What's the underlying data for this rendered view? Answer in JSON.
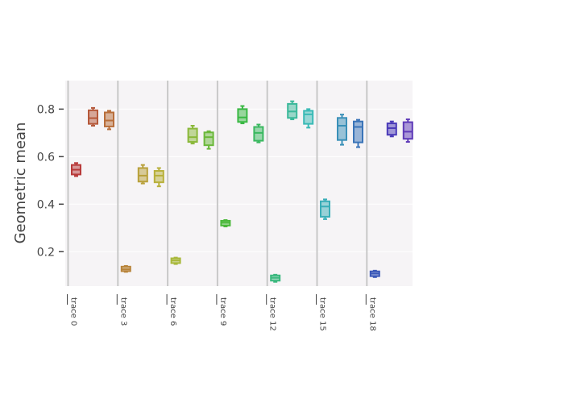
{
  "chart_data": {
    "type": "box",
    "ylabel": "Geometric mean",
    "xlabel": "",
    "ylim": [
      0.055,
      0.92
    ],
    "y_ticks": [
      0.2,
      0.4,
      0.6,
      0.8
    ],
    "y_tick_labels": [
      "0.2",
      "0.4",
      "0.6",
      "0.8"
    ],
    "x_tick_labels": [
      "trace 0",
      "trace 3",
      "trace 6",
      "trace 9",
      "trace 12",
      "trace 15",
      "trace 18"
    ],
    "grid": true,
    "legend": "none",
    "plot_background": "#f6f4f6",
    "series": [
      {
        "color": "#b83a3a",
        "min": 0.518,
        "q1": 0.525,
        "median": 0.545,
        "q3": 0.565,
        "max": 0.573
      },
      {
        "color": "#b5583a",
        "min": 0.73,
        "q1": 0.738,
        "median": 0.762,
        "q3": 0.795,
        "max": 0.805
      },
      {
        "color": "#b86e3a",
        "min": 0.715,
        "q1": 0.727,
        "median": 0.752,
        "q3": 0.786,
        "max": 0.793
      },
      {
        "color": "#b8843a",
        "min": 0.115,
        "q1": 0.118,
        "median": 0.126,
        "q3": 0.137,
        "max": 0.14
      },
      {
        "color": "#b8a03a",
        "min": 0.487,
        "q1": 0.495,
        "median": 0.52,
        "q3": 0.552,
        "max": 0.565
      },
      {
        "color": "#b8b03a",
        "min": 0.475,
        "q1": 0.492,
        "median": 0.52,
        "q3": 0.54,
        "max": 0.552
      },
      {
        "color": "#a8b83a",
        "min": 0.148,
        "q1": 0.152,
        "median": 0.163,
        "q3": 0.172,
        "max": 0.175
      },
      {
        "color": "#8ab83a",
        "min": 0.655,
        "q1": 0.662,
        "median": 0.682,
        "q3": 0.718,
        "max": 0.73
      },
      {
        "color": "#6ab83a",
        "min": 0.633,
        "q1": 0.648,
        "median": 0.682,
        "q3": 0.702,
        "max": 0.707
      },
      {
        "color": "#4ab83a",
        "min": 0.306,
        "q1": 0.31,
        "median": 0.322,
        "q3": 0.33,
        "max": 0.333
      },
      {
        "color": "#3ab844",
        "min": 0.74,
        "q1": 0.746,
        "median": 0.765,
        "q3": 0.8,
        "max": 0.813
      },
      {
        "color": "#3ab860",
        "min": 0.66,
        "q1": 0.667,
        "median": 0.7,
        "q3": 0.725,
        "max": 0.735
      },
      {
        "color": "#3ab87e",
        "min": 0.073,
        "q1": 0.078,
        "median": 0.09,
        "q3": 0.1,
        "max": 0.103
      },
      {
        "color": "#3ab89a",
        "min": 0.757,
        "q1": 0.763,
        "median": 0.79,
        "q3": 0.822,
        "max": 0.833
      },
      {
        "color": "#3abab6",
        "min": 0.722,
        "q1": 0.738,
        "median": 0.778,
        "q3": 0.793,
        "max": 0.8
      },
      {
        "color": "#3aaeb8",
        "min": 0.337,
        "q1": 0.347,
        "median": 0.39,
        "q3": 0.412,
        "max": 0.42
      },
      {
        "color": "#3a90b8",
        "min": 0.65,
        "q1": 0.67,
        "median": 0.73,
        "q3": 0.763,
        "max": 0.777
      },
      {
        "color": "#3a74b8",
        "min": 0.64,
        "q1": 0.66,
        "median": 0.725,
        "q3": 0.748,
        "max": 0.755
      },
      {
        "color": "#3a58b8",
        "min": 0.093,
        "q1": 0.097,
        "median": 0.108,
        "q3": 0.117,
        "max": 0.12
      },
      {
        "color": "#4a3ab8",
        "min": 0.685,
        "q1": 0.692,
        "median": 0.72,
        "q3": 0.74,
        "max": 0.748
      },
      {
        "color": "#5e3ab8",
        "min": 0.662,
        "q1": 0.675,
        "median": 0.705,
        "q3": 0.745,
        "max": 0.757
      }
    ]
  }
}
